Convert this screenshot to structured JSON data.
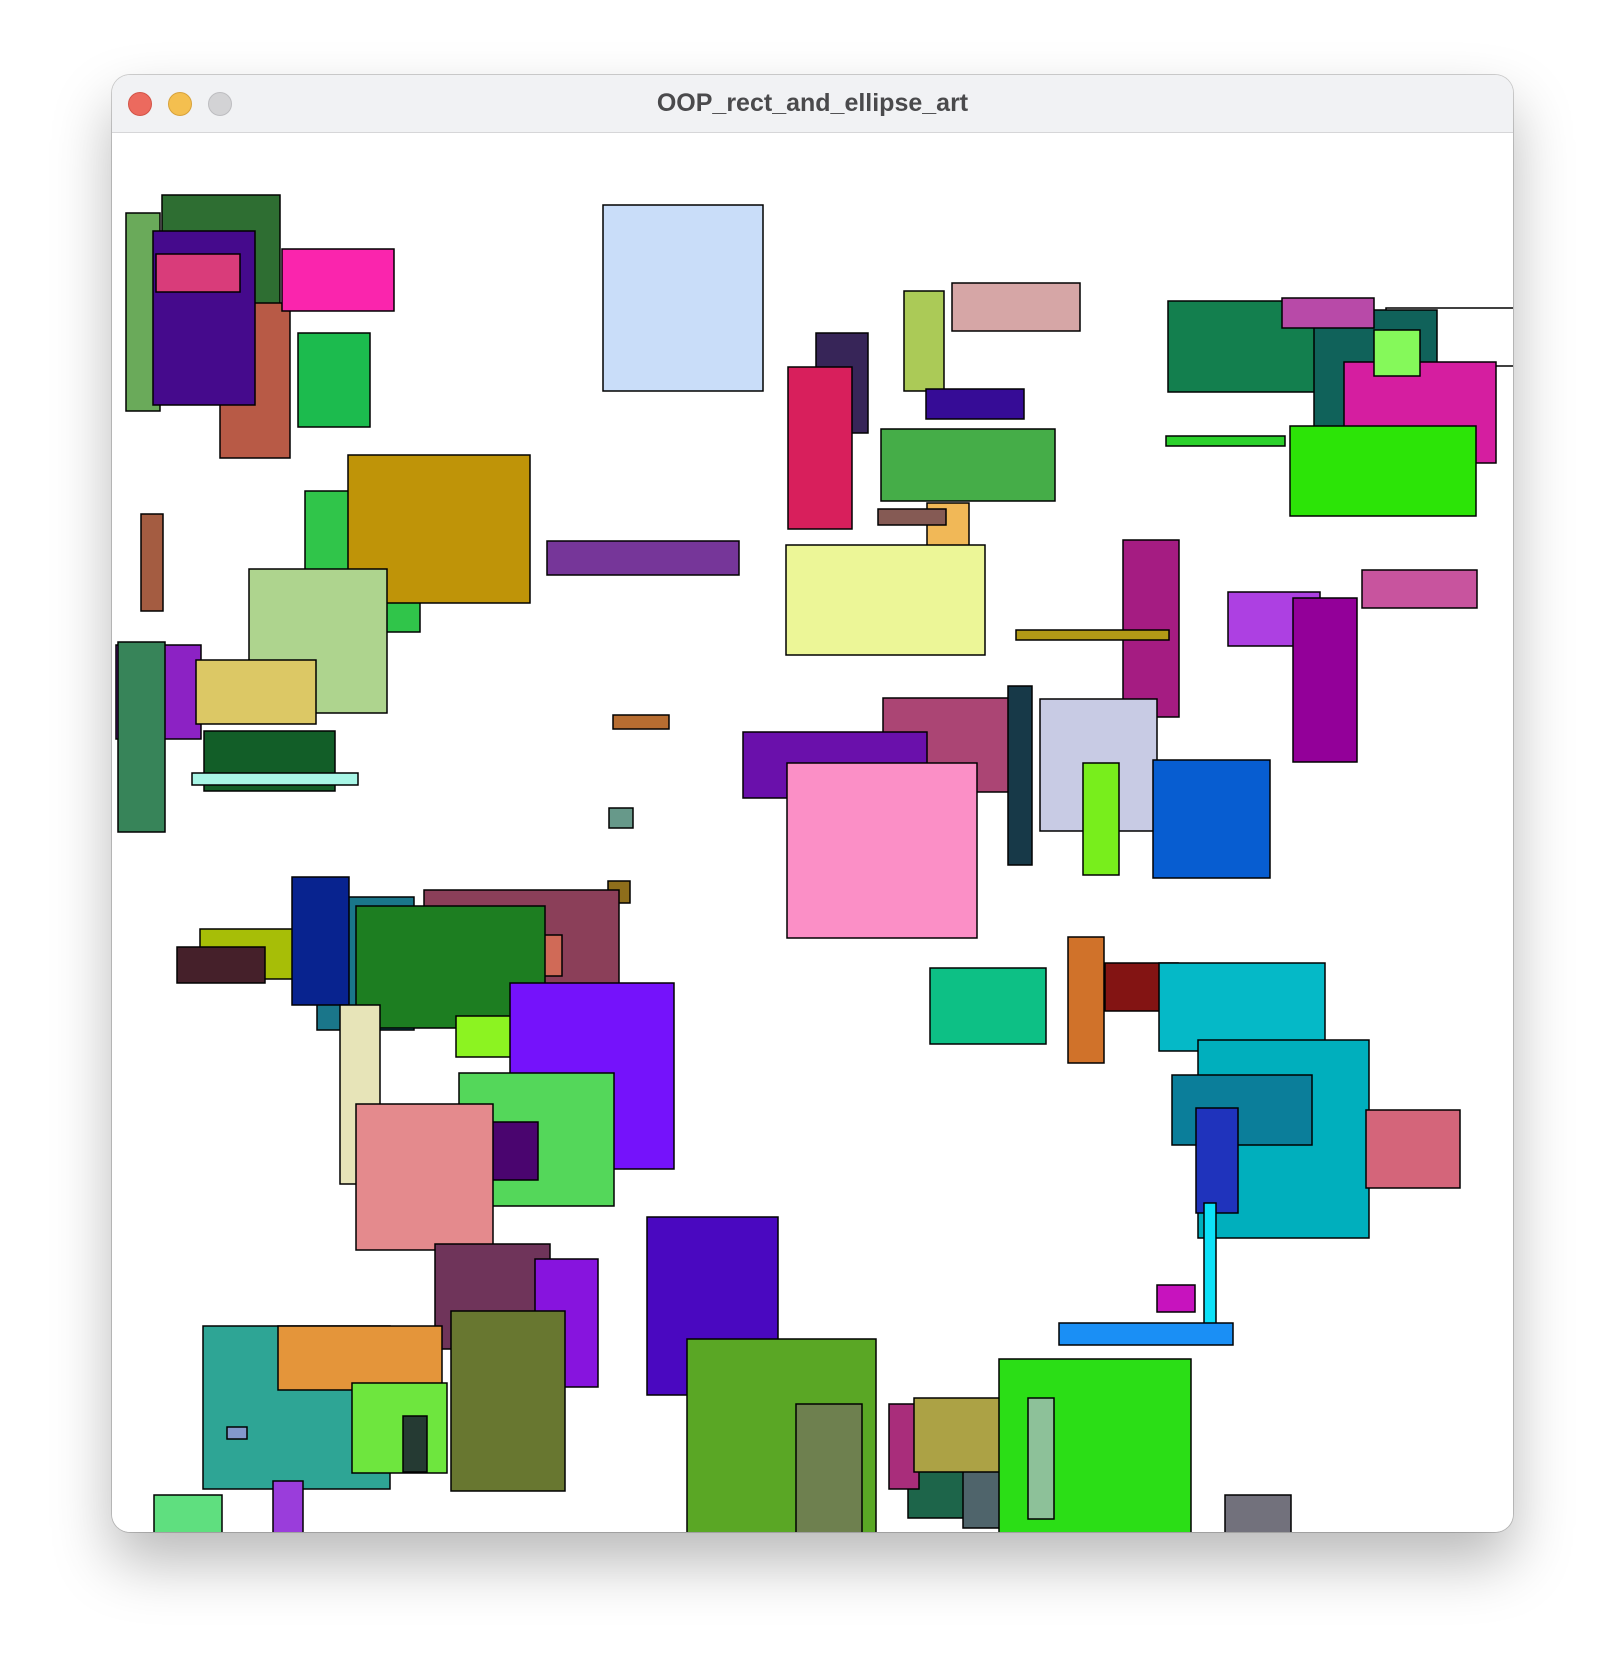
{
  "window": {
    "title": "OOP_rect_and_ellipse_art"
  },
  "colors": {
    "close": "#ec6a5e",
    "minimize": "#f4bf4f",
    "zoom": "#d3d3d5",
    "canvas_background": "#ffffff",
    "shape_stroke": "#000000"
  },
  "shapes": [
    {
      "fill": "#6aaa5a"
    },
    {
      "fill": "#2e6e32"
    },
    {
      "fill": "#b85a46"
    },
    {
      "fill": "#450a8c"
    },
    {
      "fill": "#d93c7a"
    },
    {
      "fill": "#fa25ad"
    },
    {
      "fill": "#1cbb4e"
    },
    {
      "fill": "#c9ddf9"
    },
    {
      "fill": "#372558"
    },
    {
      "fill": "#d81f5c"
    },
    {
      "fill": "#abca57"
    },
    {
      "fill": "#d6a6a6"
    },
    {
      "fill": "#360c96"
    },
    {
      "fill": "#45ad48"
    },
    {
      "fill": "#f1b857"
    },
    {
      "fill": "#855a54"
    },
    {
      "fill": "#ecf697"
    },
    {
      "fill": "#137f4e"
    },
    {
      "fill": "#ffffff"
    },
    {
      "fill": "#10625a"
    },
    {
      "fill": "#b84aa8"
    },
    {
      "fill": "#d51ea0"
    },
    {
      "fill": "#85f95a"
    },
    {
      "fill": "#2bd12b"
    },
    {
      "fill": "#2ce407"
    },
    {
      "fill": "#a45c41"
    },
    {
      "fill": "#30c54a"
    },
    {
      "fill": "#bf9408"
    },
    {
      "fill": "#763699"
    },
    {
      "fill": "#aed48e"
    },
    {
      "fill": "#a51c82"
    },
    {
      "fill": "#b29a16"
    },
    {
      "fill": "#ad40e2"
    },
    {
      "fill": "#930099"
    },
    {
      "fill": "#c8549e"
    },
    {
      "fill": "#8c22c4"
    },
    {
      "fill": "#dcc865"
    },
    {
      "fill": "#378459"
    },
    {
      "fill": "#125e28"
    },
    {
      "fill": "#a8f6e6"
    },
    {
      "fill": "#b9b9b9"
    },
    {
      "fill": "#b76d31"
    },
    {
      "fill": "#67998a"
    },
    {
      "fill": "#ab4574"
    },
    {
      "fill": "#6a10ab"
    },
    {
      "fill": "#fb8fc6"
    },
    {
      "fill": "#173948"
    },
    {
      "fill": "#c8cbe4"
    },
    {
      "fill": "#78ee1c"
    },
    {
      "fill": "#075dd1"
    },
    {
      "fill": "#8e6e1b"
    },
    {
      "fill": "#a7be07"
    },
    {
      "fill": "#1a768a"
    },
    {
      "fill": "#8b3f59"
    },
    {
      "fill": "#08238f"
    },
    {
      "fill": "#45202a"
    },
    {
      "fill": "#d06a57"
    },
    {
      "fill": "#1d7e21"
    },
    {
      "fill": "#e7e4b8"
    },
    {
      "fill": "#8cf321"
    },
    {
      "fill": "#7512fb"
    },
    {
      "fill": "#54d75a"
    },
    {
      "fill": "#4a056f"
    },
    {
      "fill": "#e48a8d"
    },
    {
      "fill": "#0dc085"
    },
    {
      "fill": "#d0722a"
    },
    {
      "fill": "#831413"
    },
    {
      "fill": "#05b9c7"
    },
    {
      "fill": "#00afbd"
    },
    {
      "fill": "#0b7e9a"
    },
    {
      "fill": "#d4657a"
    },
    {
      "fill": "#1f33bc"
    },
    {
      "fill": "#0de2f8"
    },
    {
      "fill": "#c713be"
    },
    {
      "fill": "#1a8ff5"
    },
    {
      "fill": "#4a08c0"
    },
    {
      "fill": "#5aa725"
    },
    {
      "fill": "#6e804f"
    },
    {
      "fill": "#6f345a"
    },
    {
      "fill": "#8714de"
    },
    {
      "fill": "#2ea595"
    },
    {
      "fill": "#e4953a"
    },
    {
      "fill": "#6ee63e"
    },
    {
      "fill": "#253a33"
    },
    {
      "fill": "#687730"
    },
    {
      "fill": "#8398cc"
    },
    {
      "fill": "#5fdf7f"
    },
    {
      "fill": "#9a3ddb"
    },
    {
      "fill": "#1d654a"
    },
    {
      "fill": "#4f646b"
    },
    {
      "fill": "#a92d7b"
    },
    {
      "fill": "#aca245"
    },
    {
      "fill": "#2bde16"
    },
    {
      "fill": "#8dc199"
    },
    {
      "fill": "#72717c"
    }
  ]
}
